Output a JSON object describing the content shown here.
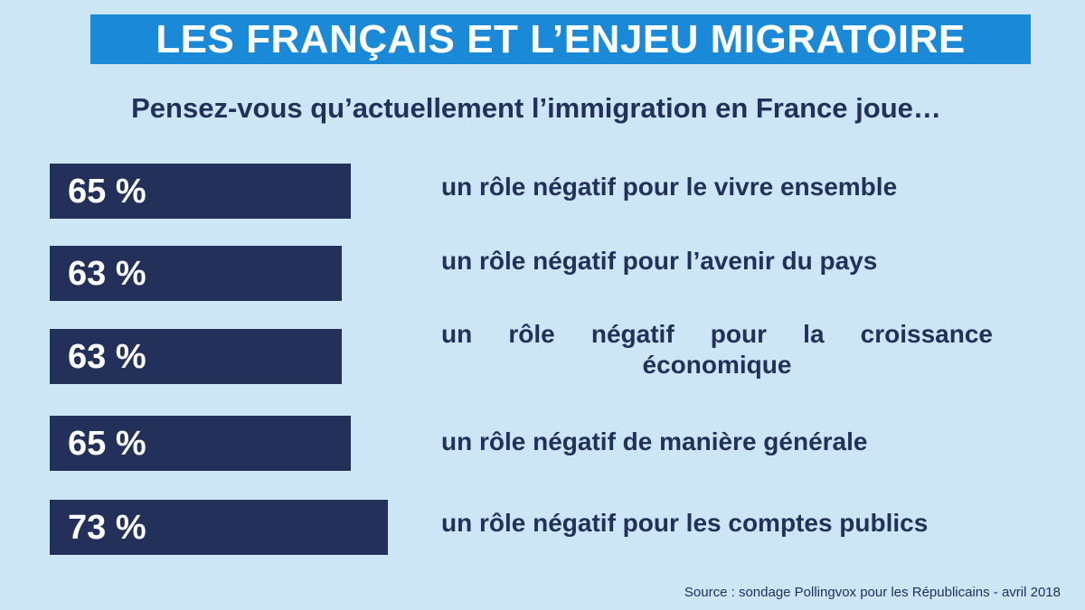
{
  "header": {
    "title": "LES FRANÇAIS ET L’ENJEU MIGRATOIRE",
    "question": "Pensez-vous qu’actuellement l’immigration en France joue…"
  },
  "chart_data": {
    "type": "bar",
    "orientation": "horizontal",
    "title": "LES FRANÇAIS ET L’ENJEU MIGRATOIRE",
    "subtitle": "Pensez-vous qu’actuellement l’immigration en France joue…",
    "categories": [
      "un rôle négatif pour le vivre ensemble",
      "un rôle négatif pour l’avenir du pays",
      "un rôle négatif pour la croissance économique",
      "un rôle négatif de manière générale",
      "un rôle négatif pour les comptes publics"
    ],
    "values": [
      65,
      63,
      63,
      65,
      73
    ],
    "value_labels": [
      "65 %",
      "63 %",
      "63 %",
      "65 %",
      "73 %"
    ],
    "unit": "%",
    "grid": false,
    "legend": "none",
    "colors": {
      "bar": "#22305a",
      "bar_text": "#ffffff",
      "background": "#cde6f5",
      "title_background": "#1a8ad8"
    }
  },
  "footer": {
    "source": "Source : sondage Pollingvox pour les Républicains - avril 2018"
  }
}
